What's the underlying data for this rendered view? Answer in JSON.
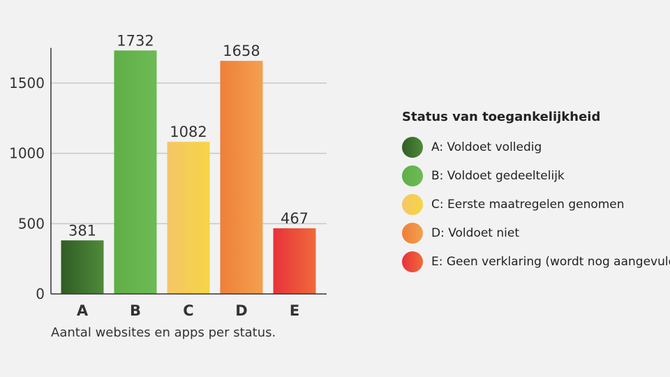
{
  "chart_data": {
    "type": "bar",
    "categories": [
      "A",
      "B",
      "C",
      "D",
      "E"
    ],
    "values": [
      381,
      1732,
      1082,
      1658,
      467
    ],
    "yticks": [
      0,
      500,
      1000,
      1500
    ],
    "ylim": [
      0,
      1750
    ],
    "grid": true,
    "colors": [
      [
        "#2f5d24",
        "#4f8a3a"
      ],
      [
        "#5fae47",
        "#6cbb55"
      ],
      [
        "#f5c667",
        "#f5d545"
      ],
      [
        "#ef7f3a",
        "#f3a04e"
      ],
      [
        "#e8323a",
        "#ef6a3a"
      ]
    ],
    "caption": "Aantal websites en apps per status."
  },
  "legend": {
    "title": "Status van toegankelijkheid",
    "items": [
      {
        "label": "A: Voldoet volledig",
        "color": [
          "#2f5d24",
          "#4f8a3a"
        ]
      },
      {
        "label": "B: Voldoet gedeeltelijk",
        "color": [
          "#5fae47",
          "#6cbb55"
        ]
      },
      {
        "label": "C: Eerste maatregelen genomen",
        "color": [
          "#f5c667",
          "#f5d545"
        ]
      },
      {
        "label": "D: Voldoet niet",
        "color": [
          "#ef7f3a",
          "#f3a04e"
        ]
      },
      {
        "label": "E: Geen verklaring (wordt nog aangevuld)",
        "color": [
          "#e8323a",
          "#ef6a3a"
        ]
      }
    ]
  }
}
